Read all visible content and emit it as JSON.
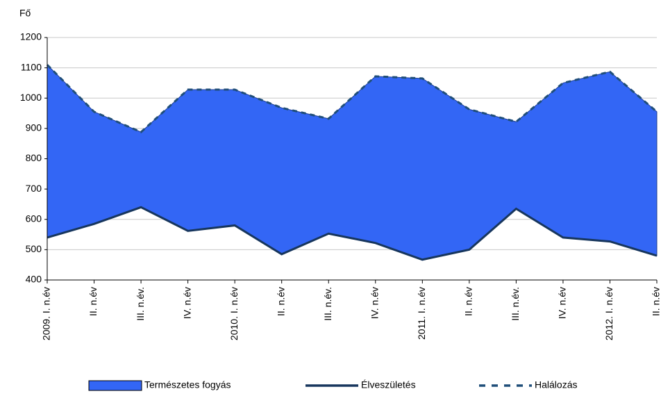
{
  "chart_data": {
    "type": "area",
    "y_label": "Fő",
    "categories": [
      "2009. I. n.év",
      "II. n.év",
      "III. n.év.",
      "IV. n.év",
      "2010. I. n.év",
      "II. n.év",
      "III. n.év.",
      "IV. n.év",
      "2011. I. n.év",
      "II. n.év",
      "III. n.év.",
      "IV. n.év",
      "2012. I. n.év",
      "II. n.év"
    ],
    "series": [
      {
        "name": "Természetes fogyás",
        "style": "area",
        "color": "#3366f5",
        "values": [
          570,
          370,
          248,
          466,
          448,
          483,
          379,
          550,
          598,
          463,
          287,
          510,
          560,
          475
        ]
      },
      {
        "name": "Élveszületés",
        "style": "solid",
        "color": "#17365d",
        "values": [
          540,
          585,
          640,
          562,
          580,
          485,
          553,
          522,
          467,
          500,
          635,
          540,
          527,
          480
        ]
      },
      {
        "name": "Halálozás",
        "style": "dashed",
        "color": "#1f4e79",
        "values": [
          1110,
          955,
          888,
          1028,
          1028,
          968,
          932,
          1072,
          1065,
          963,
          922,
          1050,
          1087,
          955
        ]
      }
    ],
    "ylim": [
      400,
      1200
    ],
    "yticks": [
      400,
      500,
      600,
      700,
      800,
      900,
      1000,
      1100,
      1200
    ],
    "grid": true
  }
}
